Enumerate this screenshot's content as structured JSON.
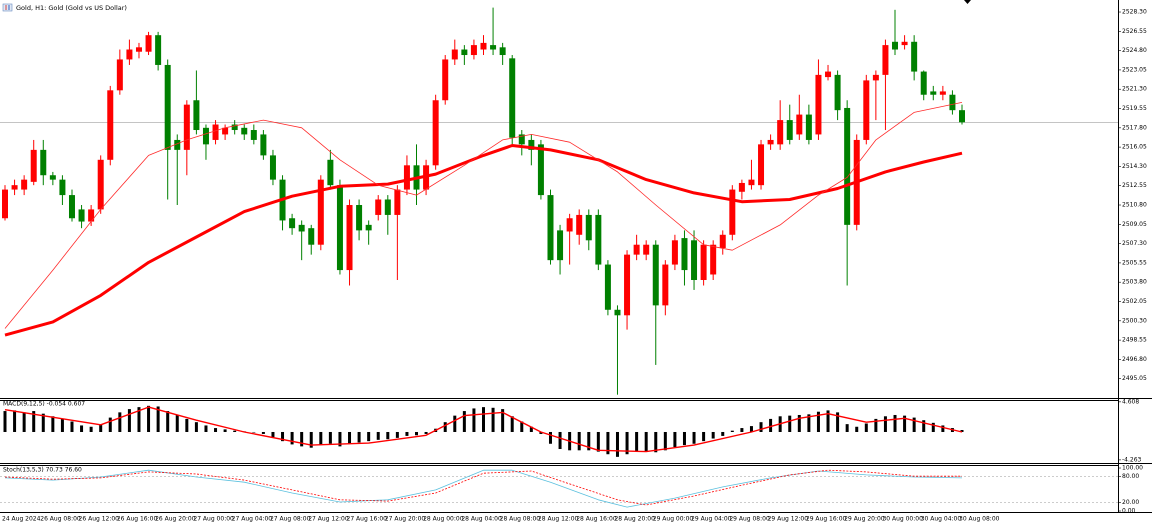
{
  "chart_data": [
    {
      "type": "candlestick",
      "title": "Gold, H1: Gold (Gold vs US Dollar)",
      "up_color": "#ff0000",
      "down_color": "#008000",
      "categories": [
        "24 Aug 2024",
        null,
        null,
        null,
        "26 Aug 08:00",
        null,
        null,
        null,
        "26 Aug 12:00",
        null,
        null,
        null,
        "26 Aug 16:00",
        null,
        null,
        null,
        "26 Aug 20:00",
        null,
        null,
        null,
        "27 Aug 00:00",
        null,
        null,
        null,
        "27 Aug 04:00",
        null,
        null,
        null,
        "27 Aug 08:00",
        null,
        null,
        null,
        "27 Aug 12:00",
        null,
        null,
        null,
        "27 Aug 16:00",
        null,
        null,
        null,
        "27 Aug 20:00",
        null,
        null,
        null,
        "28 Aug 00:00",
        null,
        null,
        null,
        "28 Aug 04:00",
        null,
        null,
        null,
        "28 Aug 08:00",
        null,
        null,
        null,
        "28 Aug 12:00",
        null,
        null,
        null,
        "28 Aug 16:00",
        null,
        null,
        null,
        "28 Aug 20:00",
        null,
        null,
        null,
        "29 Aug 00:00",
        null,
        null,
        null,
        "29 Aug 04:00",
        null,
        null,
        null,
        "29 Aug 08:00",
        null,
        null,
        null,
        "29 Aug 12:00",
        null,
        null,
        null,
        "29 Aug 16:00",
        null,
        null,
        null,
        "29 Aug 20:00",
        null,
        null,
        null,
        "30 Aug 00:00",
        null,
        null,
        null,
        "30 Aug 04:00",
        null,
        null,
        null,
        "30 Aug 08:00"
      ],
      "open": [
        2509.6,
        2512.2,
        2512.2,
        2512.9,
        2515.8,
        2513.5,
        2513.1,
        2511.7,
        2510.4,
        2509.3,
        2510.4,
        2514.9,
        2521.2,
        2524.0,
        2524.7,
        2524.7,
        2526.2,
        2523.5,
        2516.7,
        2515.8,
        2520.3,
        2517.8,
        2516.7,
        2517.2,
        2518.1,
        2517.8,
        2517.6,
        2517.2,
        2515.3,
        2513.1,
        2509.6,
        2509.0,
        2508.7,
        2507.2,
        2514.9,
        2512.6,
        2504.9,
        2510.8,
        2509.0,
        2509.9,
        2511.3,
        2509.9,
        2512.2,
        2514.4,
        2512.2,
        2514.4,
        2520.3,
        2524.0,
        2524.9,
        2524.4,
        2524.9,
        2525.3,
        2525.1,
        2524.1,
        2517.2,
        2516.7,
        2516.3,
        2511.7,
        2508.5,
        2508.4,
        2508.1,
        2509.9,
        2509.9,
        2505.4,
        2501.3,
        2500.8,
        2506.3,
        2506.3,
        2507.2,
        2501.7,
        2505.4,
        2507.8,
        2507.6,
        2504.0,
        2504.5,
        2506.9,
        2508.1,
        2512.0,
        2512.6,
        2512.6,
        2516.3,
        2516.3,
        2518.5,
        2517.2,
        2519.0,
        2517.2,
        2522.4,
        2522.6,
        2519.6,
        2509.0,
        2516.7,
        2522.1,
        2522.6,
        2525.6,
        2525.3,
        2525.6,
        2522.9,
        2521.1,
        2520.8,
        2520.8,
        2519.4
      ],
      "high": [
        2512.6,
        2513.1,
        2513.5,
        2516.7,
        2516.7,
        2513.8,
        2513.5,
        2512.2,
        2510.8,
        2510.8,
        2515.3,
        2521.6,
        2524.9,
        2525.8,
        2525.5,
        2526.5,
        2526.5,
        2524.0,
        2517.2,
        2520.3,
        2523.0,
        2518.1,
        2518.5,
        2518.1,
        2518.5,
        2518.1,
        2518.1,
        2517.6,
        2515.8,
        2513.5,
        2510.0,
        2509.4,
        2509.0,
        2513.5,
        2515.8,
        2513.1,
        2511.3,
        2511.3,
        2509.4,
        2511.7,
        2511.7,
        2512.6,
        2515.3,
        2516.3,
        2514.9,
        2520.8,
        2524.4,
        2525.8,
        2525.3,
        2525.8,
        2526.2,
        2528.7,
        2525.5,
        2524.4,
        2517.6,
        2517.2,
        2516.7,
        2512.2,
        2509.0,
        2510.0,
        2510.4,
        2510.4,
        2510.4,
        2505.8,
        2501.7,
        2506.7,
        2508.1,
        2507.6,
        2507.6,
        2505.8,
        2508.1,
        2508.5,
        2508.5,
        2507.6,
        2507.6,
        2508.5,
        2512.6,
        2513.1,
        2514.9,
        2516.7,
        2517.2,
        2520.3,
        2519.9,
        2520.8,
        2519.9,
        2524.0,
        2523.5,
        2523.0,
        2520.3,
        2517.2,
        2522.6,
        2523.0,
        2525.8,
        2528.5,
        2526.2,
        2526.2,
        2523.0,
        2521.6,
        2521.6,
        2521.2,
        2519.9
      ],
      "low": [
        2509.4,
        2511.7,
        2511.7,
        2512.6,
        2512.6,
        2512.6,
        2510.8,
        2509.3,
        2508.7,
        2508.9,
        2510.0,
        2514.4,
        2520.8,
        2523.5,
        2524.1,
        2524.4,
        2523.0,
        2511.3,
        2510.8,
        2513.5,
        2517.2,
        2514.9,
        2516.3,
        2516.7,
        2517.2,
        2516.7,
        2516.3,
        2514.9,
        2512.6,
        2508.5,
        2508.1,
        2505.8,
        2506.3,
        2506.7,
        2512.2,
        2504.5,
        2503.5,
        2507.6,
        2507.2,
        2509.4,
        2508.1,
        2504.0,
        2511.7,
        2510.8,
        2511.7,
        2514.0,
        2519.9,
        2523.5,
        2523.5,
        2524.0,
        2524.4,
        2524.4,
        2523.5,
        2516.3,
        2515.3,
        2514.4,
        2511.3,
        2505.4,
        2504.5,
        2505.4,
        2507.2,
        2506.7,
        2504.9,
        2500.8,
        2493.6,
        2499.5,
        2505.8,
        2505.8,
        2496.3,
        2500.8,
        2504.9,
        2503.5,
        2503.1,
        2503.5,
        2504.0,
        2506.3,
        2507.6,
        2511.3,
        2512.2,
        2512.2,
        2515.8,
        2515.8,
        2516.3,
        2516.7,
        2516.3,
        2516.7,
        2522.1,
        2518.5,
        2503.5,
        2508.5,
        2516.3,
        2518.5,
        2517.6,
        2524.4,
        2524.9,
        2522.1,
        2520.3,
        2520.3,
        2520.3,
        2519.0,
        2518.1
      ],
      "close": [
        2512.2,
        2512.6,
        2513.1,
        2515.8,
        2513.5,
        2513.1,
        2511.7,
        2509.6,
        2509.3,
        2510.4,
        2514.9,
        2521.2,
        2524.0,
        2524.9,
        2525.1,
        2526.2,
        2523.5,
        2515.8,
        2515.8,
        2519.9,
        2517.6,
        2516.3,
        2518.1,
        2517.8,
        2517.6,
        2517.2,
        2516.7,
        2515.3,
        2513.1,
        2509.4,
        2508.7,
        2508.4,
        2507.2,
        2513.1,
        2512.6,
        2504.9,
        2510.8,
        2508.5,
        2508.5,
        2511.3,
        2509.9,
        2512.2,
        2514.4,
        2512.2,
        2514.4,
        2520.3,
        2524.0,
        2524.9,
        2524.4,
        2525.3,
        2525.5,
        2524.9,
        2524.4,
        2516.9,
        2516.3,
        2515.8,
        2511.7,
        2505.8,
        2505.8,
        2509.6,
        2509.9,
        2507.6,
        2505.4,
        2501.3,
        2500.8,
        2506.3,
        2507.2,
        2507.2,
        2501.7,
        2505.4,
        2507.6,
        2504.9,
        2504.0,
        2507.2,
        2507.2,
        2508.1,
        2512.2,
        2512.8,
        2513.1,
        2516.3,
        2516.7,
        2518.5,
        2516.7,
        2519.0,
        2516.7,
        2522.6,
        2522.9,
        2519.4,
        2509.0,
        2516.7,
        2522.1,
        2522.6,
        2525.3,
        2524.9,
        2525.6,
        2522.9,
        2520.8,
        2520.8,
        2521.1,
        2519.4,
        2518.3
      ],
      "lines": [
        {
          "color": "#ff0000",
          "width": 3,
          "x": [
            0,
            5,
            10,
            15,
            20,
            25,
            30,
            35,
            40,
            45,
            50,
            53,
            57,
            62,
            67,
            72,
            77,
            82,
            87,
            92,
            96,
            100
          ],
          "values": [
            2499.0,
            2500.2,
            2502.6,
            2505.6,
            2507.9,
            2510.2,
            2511.6,
            2512.5,
            2512.7,
            2513.6,
            2515.3,
            2516.2,
            2515.8,
            2514.9,
            2513.1,
            2511.9,
            2511.1,
            2511.3,
            2512.3,
            2513.8,
            2514.7,
            2515.5
          ]
        },
        {
          "color": "#ff2a2a",
          "width": 0.8,
          "x": [
            0,
            5,
            10,
            15,
            19,
            23,
            27,
            31,
            35,
            39,
            43,
            48,
            52,
            55,
            59,
            64,
            68,
            73,
            76,
            81,
            85,
            88,
            91,
            95,
            100
          ],
          "values": [
            2499.6,
            2504.9,
            2510.4,
            2515.3,
            2516.7,
            2517.8,
            2518.5,
            2517.8,
            2514.9,
            2512.6,
            2511.7,
            2514.4,
            2516.7,
            2517.2,
            2516.5,
            2513.8,
            2510.8,
            2507.2,
            2506.7,
            2509.0,
            2511.7,
            2513.3,
            2516.7,
            2519.2,
            2520.1
          ]
        }
      ],
      "last_price": 2518.3,
      "ylim": [
        2493.3,
        2529.39
      ],
      "yticks": [
        {
          "value": 2528.3,
          "label": "2528.30"
        },
        {
          "value": 2526.55,
          "label": "2526.55"
        },
        {
          "value": 2524.8,
          "label": "2524.80"
        },
        {
          "value": 2523.05,
          "label": "2523.05"
        },
        {
          "value": 2521.3,
          "label": "2521.30"
        },
        {
          "value": 2519.55,
          "label": "2519.55"
        },
        {
          "value": 2517.8,
          "label": "2517.80"
        },
        {
          "value": 2516.05,
          "label": "2516.05"
        },
        {
          "value": 2514.3,
          "label": "2514.30"
        },
        {
          "value": 2512.55,
          "label": "2512.55"
        },
        {
          "value": 2510.8,
          "label": "2510.80"
        },
        {
          "value": 2509.05,
          "label": "2509.05"
        },
        {
          "value": 2507.3,
          "label": "2507.30"
        },
        {
          "value": 2505.55,
          "label": "2505.55"
        },
        {
          "value": 2503.8,
          "label": "2503.80"
        },
        {
          "value": 2502.05,
          "label": "2502.05"
        },
        {
          "value": 2500.3,
          "label": "2500.30"
        },
        {
          "value": 2498.55,
          "label": "2498.55"
        },
        {
          "value": 2496.8,
          "label": "2496.80"
        },
        {
          "value": 2495.05,
          "label": "2495.05"
        }
      ]
    },
    {
      "type": "macd",
      "label": "MACD(9,12,5) -0.054 0.607",
      "bar_color": "#000000",
      "values": [
        3.2,
        3.3,
        3.0,
        3.2,
        2.8,
        2.4,
        2.0,
        1.6,
        1.0,
        0.8,
        1.2,
        2.2,
        3.0,
        3.5,
        3.8,
        4.0,
        3.9,
        3.2,
        2.6,
        2.0,
        1.5,
        1.0,
        0.6,
        0.4,
        0.2,
        0.1,
        0.0,
        -0.3,
        -0.8,
        -1.4,
        -1.9,
        -2.2,
        -2.4,
        -2.0,
        -1.8,
        -2.2,
        -1.8,
        -1.6,
        -1.4,
        -1.2,
        -1.1,
        -0.9,
        -0.6,
        -0.5,
        -0.3,
        0.5,
        1.5,
        2.5,
        3.2,
        3.6,
        3.8,
        3.7,
        3.5,
        2.4,
        1.6,
        0.8,
        -0.3,
        -1.8,
        -2.6,
        -2.8,
        -2.8,
        -2.8,
        -3.0,
        -3.4,
        -3.8,
        -3.4,
        -3.0,
        -3.0,
        -3.1,
        -2.8,
        -2.3,
        -2.0,
        -1.8,
        -1.4,
        -1.0,
        -0.6,
        0.2,
        0.6,
        0.9,
        1.5,
        2.0,
        2.4,
        2.5,
        2.6,
        2.7,
        3.1,
        3.3,
        3.0,
        1.2,
        0.8,
        1.3,
        2.0,
        2.4,
        2.6,
        2.5,
        2.2,
        1.8,
        1.4,
        1.0,
        0.6,
        0.3
      ],
      "signal": {
        "color": "#ff0000",
        "x": [
          0,
          10,
          15,
          20,
          25,
          32,
          38,
          44,
          48,
          52,
          56,
          62,
          67,
          72,
          78,
          83,
          86,
          90,
          94,
          100
        ],
        "values": [
          3.4,
          1.1,
          3.8,
          1.8,
          0,
          -2.0,
          -1.7,
          -0.5,
          2.5,
          3.0,
          0,
          -2.8,
          -3.0,
          -2.0,
          0,
          2.1,
          2.8,
          1.5,
          2.1,
          0
        ]
      },
      "ylim": [
        -4.74,
        4.89
      ],
      "yticks": [
        4.608,
        -4.263
      ]
    },
    {
      "type": "stoch",
      "label": "Stoch(13,5,3) 70.73 76.60",
      "main": {
        "color": "#5bc0de",
        "x": [
          0,
          5,
          10,
          15,
          20,
          25,
          30,
          35,
          40,
          45,
          50,
          53,
          57,
          62,
          65,
          70,
          75,
          80,
          85,
          90,
          95,
          100
        ],
        "values": [
          77,
          72,
          79,
          95,
          79,
          67,
          42,
          21,
          26,
          49,
          95,
          95,
          67,
          26,
          9,
          30,
          56,
          77,
          93,
          84,
          79,
          77
        ]
      },
      "signal": {
        "color": "#ff0000",
        "x": [
          0,
          5,
          10,
          15,
          20,
          25,
          30,
          35,
          40,
          45,
          50,
          55,
          59,
          64,
          67,
          72,
          77,
          82,
          86,
          90,
          95,
          100
        ],
        "values": [
          79,
          74,
          77,
          91,
          86,
          72,
          49,
          26,
          23,
          42,
          88,
          93,
          63,
          26,
          14,
          35,
          60,
          84,
          95,
          91,
          81,
          81
        ]
      },
      "levels": [
        80,
        20
      ],
      "ylim": [
        -2.3,
        107
      ],
      "yticks": [
        {
          "value": 100,
          "label": "100.00"
        },
        {
          "value": 80,
          "label": "80.00"
        },
        {
          "value": 20,
          "label": "20.00"
        },
        {
          "value": 0,
          "label": "0.00"
        }
      ]
    }
  ]
}
